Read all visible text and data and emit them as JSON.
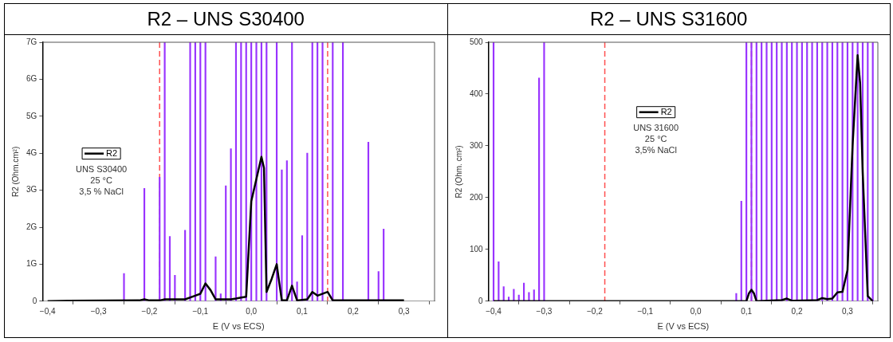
{
  "chart_data": [
    {
      "type": "line",
      "title": "R2 – UNS S30400",
      "xlabel": "E (V vs ECS)",
      "ylabel": "R2 (Ohm.cm²)",
      "xlim": [
        -0.41,
        0.36
      ],
      "xticks": [
        {
          "value": -0.4,
          "label": "−0,4"
        },
        {
          "value": -0.3,
          "label": "−0,3"
        },
        {
          "value": -0.2,
          "label": "−0,2"
        },
        {
          "value": -0.1,
          "label": "−0,1"
        },
        {
          "value": 0,
          "label": "0,0"
        },
        {
          "value": 0.1,
          "label": "0,1"
        },
        {
          "value": 0.2,
          "label": "0,2"
        },
        {
          "value": 0.3,
          "label": "0,3"
        }
      ],
      "ylim": [
        0,
        7
      ],
      "yticks": [
        0,
        {
          "value": 1,
          "label": "1G"
        },
        {
          "value": 2,
          "label": "2G"
        },
        {
          "value": 3,
          "label": "3G"
        },
        {
          "value": 4,
          "label": "4G"
        },
        {
          "value": 5,
          "label": "5G"
        },
        {
          "value": 6,
          "label": "6G"
        },
        {
          "value": 7,
          "label": "7G"
        }
      ],
      "series": [
        {
          "type": "bar",
          "color": "#9933ff",
          "x": [
            -0.25,
            -0.21,
            -0.18,
            -0.17,
            -0.16,
            -0.15,
            -0.13,
            -0.12,
            -0.11,
            -0.1,
            -0.09,
            -0.07,
            -0.06,
            -0.05,
            -0.04,
            -0.03,
            -0.02,
            -0.01,
            0,
            0.01,
            0.02,
            0.03,
            0.05,
            0.06,
            0.07,
            0.08,
            0.09,
            0.1,
            0.11,
            0.12,
            0.13,
            0.14,
            0.16,
            0.18,
            0.23,
            0.25,
            0.26
          ],
          "values": [
            0.75,
            3.05,
            3.35,
            7,
            1.75,
            0.7,
            1.92,
            7,
            7,
            7,
            7,
            1.2,
            0.2,
            3.12,
            4.12,
            7,
            7,
            7,
            7,
            7,
            7,
            7,
            7,
            3.55,
            3.8,
            7,
            0.52,
            1.77,
            4,
            7,
            7,
            7,
            7,
            7,
            4.3,
            0.8,
            1.95
          ]
        },
        {
          "name": "R2",
          "color": "#000000",
          "x": [
            -0.4,
            -0.36,
            -0.22,
            -0.21,
            -0.2,
            -0.18,
            -0.17,
            -0.13,
            -0.11,
            -0.1,
            -0.09,
            -0.08,
            -0.07,
            -0.04,
            -0.03,
            -0.02,
            -0.01,
            0,
            0.01,
            0.02,
            0.025,
            0.03,
            0.04,
            0.05,
            0.055,
            0.06,
            0.07,
            0.08,
            0.09,
            0.11,
            0.12,
            0.13,
            0.15,
            0.16,
            0.3
          ],
          "values": [
            0,
            0.01,
            0.02,
            0.05,
            0.02,
            0.02,
            0.05,
            0.05,
            0.15,
            0.2,
            0.48,
            0.3,
            0.05,
            0.05,
            0.07,
            0.1,
            0.12,
            2.7,
            3.3,
            3.9,
            3.6,
            0.25,
            0.6,
            1,
            0.5,
            0.02,
            0.02,
            0.42,
            0.02,
            0.05,
            0.25,
            0.15,
            0.25,
            0.02,
            0.02
          ]
        }
      ],
      "ref_lines": [
        {
          "axis": "x",
          "value": -0.18,
          "color": "#ff5050",
          "line_style": "dashed"
        },
        {
          "axis": "x",
          "value": 0.15,
          "color": "#ff5050",
          "line_style": "dashed"
        }
      ],
      "annotations": [
        "UNS S30400",
        "25 °C",
        "3,5 % NaCl"
      ],
      "legend": "left",
      "grid": false
    },
    {
      "type": "line",
      "title": "R2 – UNS S31600",
      "xlabel": "E (V vs ECS)",
      "ylabel": "R2 (Ohm. cm²)",
      "xlim": [
        -0.41,
        0.36
      ],
      "xticks": [
        {
          "value": -0.4,
          "label": "−0,4"
        },
        {
          "value": -0.3,
          "label": "−0,3"
        },
        {
          "value": -0.2,
          "label": "−0,2"
        },
        {
          "value": -0.1,
          "label": "−0,1"
        },
        {
          "value": 0,
          "label": "0,0"
        },
        {
          "value": 0.1,
          "label": "0,1"
        },
        {
          "value": 0.2,
          "label": "0,2"
        },
        {
          "value": 0.3,
          "label": "0,3"
        }
      ],
      "ylim": [
        0,
        500
      ],
      "yticks": [
        0,
        100,
        200,
        300,
        400,
        500
      ],
      "series": [
        {
          "type": "bar",
          "color": "#9933ff",
          "x": [
            -0.4,
            -0.39,
            -0.38,
            -0.37,
            -0.36,
            -0.35,
            -0.34,
            -0.33,
            -0.32,
            -0.31,
            -0.3,
            0.08,
            0.09,
            0.1,
            0.11,
            0.12,
            0.13,
            0.14,
            0.15,
            0.16,
            0.17,
            0.18,
            0.19,
            0.2,
            0.21,
            0.22,
            0.23,
            0.24,
            0.25,
            0.26,
            0.27,
            0.28,
            0.29,
            0.3,
            0.31,
            0.32,
            0.33,
            0.34,
            0.35
          ],
          "values": [
            500,
            76,
            28,
            8,
            23,
            12,
            35,
            17,
            22,
            431,
            500,
            15,
            193,
            500,
            500,
            500,
            500,
            500,
            500,
            500,
            500,
            500,
            500,
            500,
            500,
            500,
            500,
            500,
            500,
            500,
            500,
            500,
            500,
            500,
            500,
            500,
            500,
            500,
            500
          ]
        },
        {
          "name": "R2",
          "color": "#000000",
          "x": [
            -0.4,
            0.1,
            0.105,
            0.11,
            0.115,
            0.12,
            0.14,
            0.17,
            0.18,
            0.19,
            0.24,
            0.25,
            0.26,
            0.27,
            0.28,
            0.29,
            0.3,
            0.31,
            0.32,
            0.325,
            0.33,
            0.34,
            0.35
          ],
          "values": [
            0,
            0,
            15,
            22,
            15,
            0,
            1,
            2,
            5,
            1,
            2,
            6,
            4,
            5,
            17,
            18,
            60,
            300,
            475,
            420,
            250,
            10,
            0
          ]
        }
      ],
      "ref_lines": [
        {
          "axis": "x",
          "value": -0.18,
          "color": "#ff5050",
          "line_style": "dashed"
        },
        {
          "axis": "x",
          "value": 0.11,
          "color": "#ff5050",
          "line_style": "dashed"
        }
      ],
      "annotations": [
        "UNS 31600",
        "25 °C",
        "3,5% NaCl"
      ],
      "legend": "top",
      "grid": false
    }
  ]
}
